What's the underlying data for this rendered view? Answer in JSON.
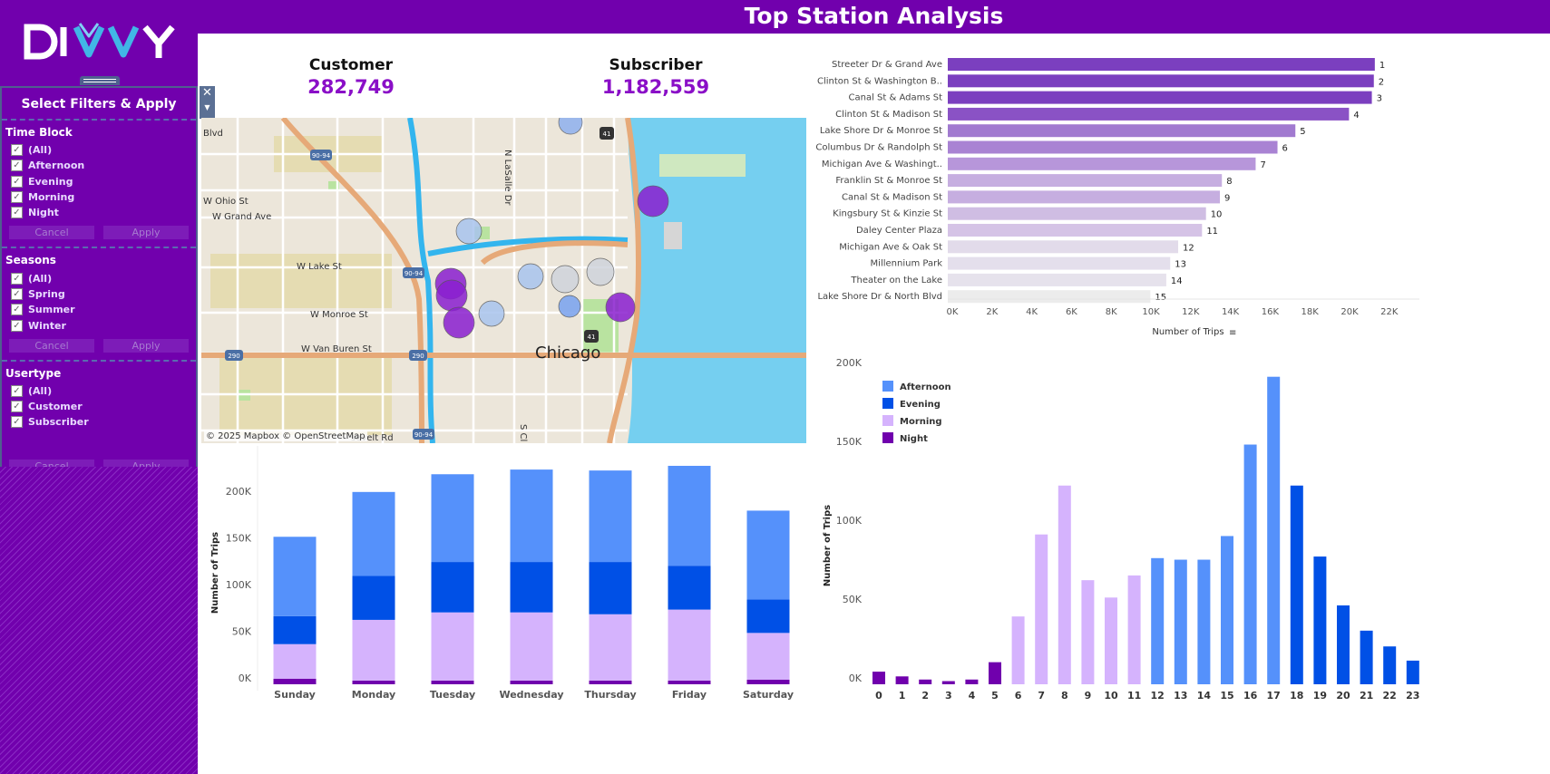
{
  "header": {
    "title": "Top Station Analysis",
    "logo": "DIVVY"
  },
  "filters": {
    "title": "Select Filters & Apply",
    "groups": [
      {
        "label": "Time Block",
        "options": [
          "(All)",
          "Afternoon",
          "Evening",
          "Morning",
          "Night"
        ],
        "checked": [
          true,
          true,
          true,
          true,
          true
        ],
        "cancel": "Cancel",
        "apply": "Apply"
      },
      {
        "label": "Seasons",
        "options": [
          "(All)",
          "Spring",
          "Summer",
          "Winter"
        ],
        "checked": [
          true,
          true,
          true,
          true
        ],
        "cancel": "Cancel",
        "apply": "Apply"
      },
      {
        "label": "Usertype",
        "options": [
          "(All)",
          "Customer",
          "Subscriber"
        ],
        "checked": [
          true,
          true,
          true
        ],
        "cancel": "Cancel",
        "apply": "Apply"
      }
    ]
  },
  "kpis": [
    {
      "label": "Customer",
      "value": "282,749"
    },
    {
      "label": "Subscriber",
      "value": "1,182,559"
    }
  ],
  "map": {
    "credit": "© 2025 Mapbox © OpenStreetMap",
    "city": "Chicago",
    "labels": [
      "Blvd",
      "W Ohio St",
      "W Grand Ave",
      "W Lake St",
      "W Monroe St",
      "W Van Buren St",
      "N LaSalle Dr",
      "S Cl",
      "sevelt Rd"
    ],
    "shields": [
      "90-94",
      "41",
      "90-94",
      "290",
      "290",
      "41",
      "90-94"
    ]
  },
  "colors": {
    "afternoon": "#5591fb",
    "evening": "#0050e6",
    "morning": "#d5b3fd",
    "night": "#7000ad",
    "accent": "#7100ad"
  },
  "chart_data": [
    {
      "type": "bar",
      "orientation": "horizontal",
      "xlabel": "Number of Trips",
      "categories": [
        "Streeter Dr & Grand Ave",
        "Clinton St & Washington B..",
        "Canal St & Adams St",
        "Clinton St & Madison St",
        "Lake Shore Dr & Monroe St",
        "Columbus Dr & Randolph St",
        "Michigan Ave & Washingt..",
        "Franklin St & Monroe St",
        "Canal St & Madison St",
        "Kingsbury St & Kinzie St",
        "Daley Center Plaza",
        "Michigan Ave & Oak St",
        "Millennium Park",
        "Theater on the Lake",
        "Lake Shore Dr & North Blvd"
      ],
      "values": [
        21500,
        21450,
        21350,
        20200,
        17500,
        16600,
        15500,
        13800,
        13700,
        13000,
        12800,
        11600,
        11200,
        11000,
        10200
      ],
      "data_labels": [
        "1",
        "2",
        "3",
        "4",
        "5",
        "6",
        "7",
        "8",
        "9",
        "10",
        "11",
        "12",
        "13",
        "14",
        "15"
      ],
      "xticks": [
        "0K",
        "2K",
        "4K",
        "6K",
        "8K",
        "10K",
        "12K",
        "14K",
        "16K",
        "18K",
        "20K",
        "22K"
      ],
      "xlim": [
        0,
        23000
      ]
    },
    {
      "type": "bar",
      "stacked": true,
      "ylabel": "Number of Trips",
      "categories": [
        "Sunday",
        "Monday",
        "Tuesday",
        "Wednesday",
        "Thursday",
        "Friday",
        "Saturday"
      ],
      "series": [
        {
          "name": "Night",
          "values": [
            6000,
            4000,
            4000,
            4000,
            4000,
            4000,
            5000
          ]
        },
        {
          "name": "Morning",
          "values": [
            37000,
            65000,
            73000,
            73000,
            71000,
            76000,
            50000
          ]
        },
        {
          "name": "Evening",
          "values": [
            30000,
            47000,
            54000,
            54000,
            56000,
            47000,
            36000
          ]
        },
        {
          "name": "Afternoon",
          "values": [
            85000,
            90000,
            94000,
            99000,
            98000,
            107000,
            95000
          ]
        }
      ],
      "yticks": [
        "0K",
        "50K",
        "100K",
        "150K",
        "200K"
      ],
      "ylim": [
        0,
        240000
      ]
    },
    {
      "type": "bar",
      "ylabel": "Number of Trips",
      "legend": "top-left",
      "categories": [
        "0",
        "1",
        "2",
        "3",
        "4",
        "5",
        "6",
        "7",
        "8",
        "9",
        "10",
        "11",
        "12",
        "13",
        "14",
        "15",
        "16",
        "17",
        "18",
        "19",
        "20",
        "21",
        "22",
        "23"
      ],
      "values": [
        8000,
        5000,
        3000,
        2000,
        3000,
        14000,
        43000,
        95000,
        126000,
        66000,
        55000,
        69000,
        80000,
        79000,
        79000,
        94000,
        152000,
        195000,
        126000,
        81000,
        50000,
        34000,
        24000,
        15000
      ],
      "time_block": [
        "Night",
        "Night",
        "Night",
        "Night",
        "Night",
        "Night",
        "Morning",
        "Morning",
        "Morning",
        "Morning",
        "Morning",
        "Morning",
        "Afternoon",
        "Afternoon",
        "Afternoon",
        "Afternoon",
        "Afternoon",
        "Afternoon",
        "Evening",
        "Evening",
        "Evening",
        "Evening",
        "Evening",
        "Evening"
      ],
      "legend_entries": [
        "Afternoon",
        "Evening",
        "Morning",
        "Night"
      ],
      "yticks": [
        "0K",
        "50K",
        "100K",
        "150K",
        "200K"
      ],
      "ylim": [
        0,
        200000
      ]
    }
  ]
}
